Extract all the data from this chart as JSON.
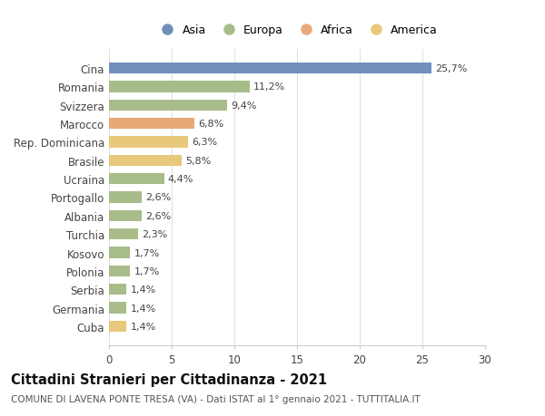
{
  "categories": [
    "Cina",
    "Romania",
    "Svizzera",
    "Marocco",
    "Rep. Dominicana",
    "Brasile",
    "Ucraina",
    "Portogallo",
    "Albania",
    "Turchia",
    "Kosovo",
    "Polonia",
    "Serbia",
    "Germania",
    "Cuba"
  ],
  "values": [
    25.7,
    11.2,
    9.4,
    6.8,
    6.3,
    5.8,
    4.4,
    2.6,
    2.6,
    2.3,
    1.7,
    1.7,
    1.4,
    1.4,
    1.4
  ],
  "labels": [
    "25,7%",
    "11,2%",
    "9,4%",
    "6,8%",
    "6,3%",
    "5,8%",
    "4,4%",
    "2,6%",
    "2,6%",
    "2,3%",
    "1,7%",
    "1,7%",
    "1,4%",
    "1,4%",
    "1,4%"
  ],
  "colors": [
    "#7090bb",
    "#a8bc8a",
    "#a8bc8a",
    "#e8a878",
    "#e8c87a",
    "#e8c87a",
    "#a8bc8a",
    "#a8bc8a",
    "#a8bc8a",
    "#a8bc8a",
    "#a8bc8a",
    "#a8bc8a",
    "#a8bc8a",
    "#a8bc8a",
    "#e8c87a"
  ],
  "legend_labels": [
    "Asia",
    "Europa",
    "Africa",
    "America"
  ],
  "legend_colors": [
    "#7090bb",
    "#a8bc8a",
    "#e8a878",
    "#e8c87a"
  ],
  "title": "Cittadini Stranieri per Cittadinanza - 2021",
  "subtitle": "COMUNE DI LAVENA PONTE TRESA (VA) - Dati ISTAT al 1° gennaio 2021 - TUTTITALIA.IT",
  "xlim": [
    0,
    30
  ],
  "xticks": [
    0,
    5,
    10,
    15,
    20,
    25,
    30
  ],
  "background_color": "#ffffff",
  "grid_color": "#e0e0e0",
  "bar_height": 0.6,
  "title_fontsize": 10.5,
  "subtitle_fontsize": 7.5,
  "tick_fontsize": 8.5,
  "label_fontsize": 8.0,
  "legend_fontsize": 9.0
}
